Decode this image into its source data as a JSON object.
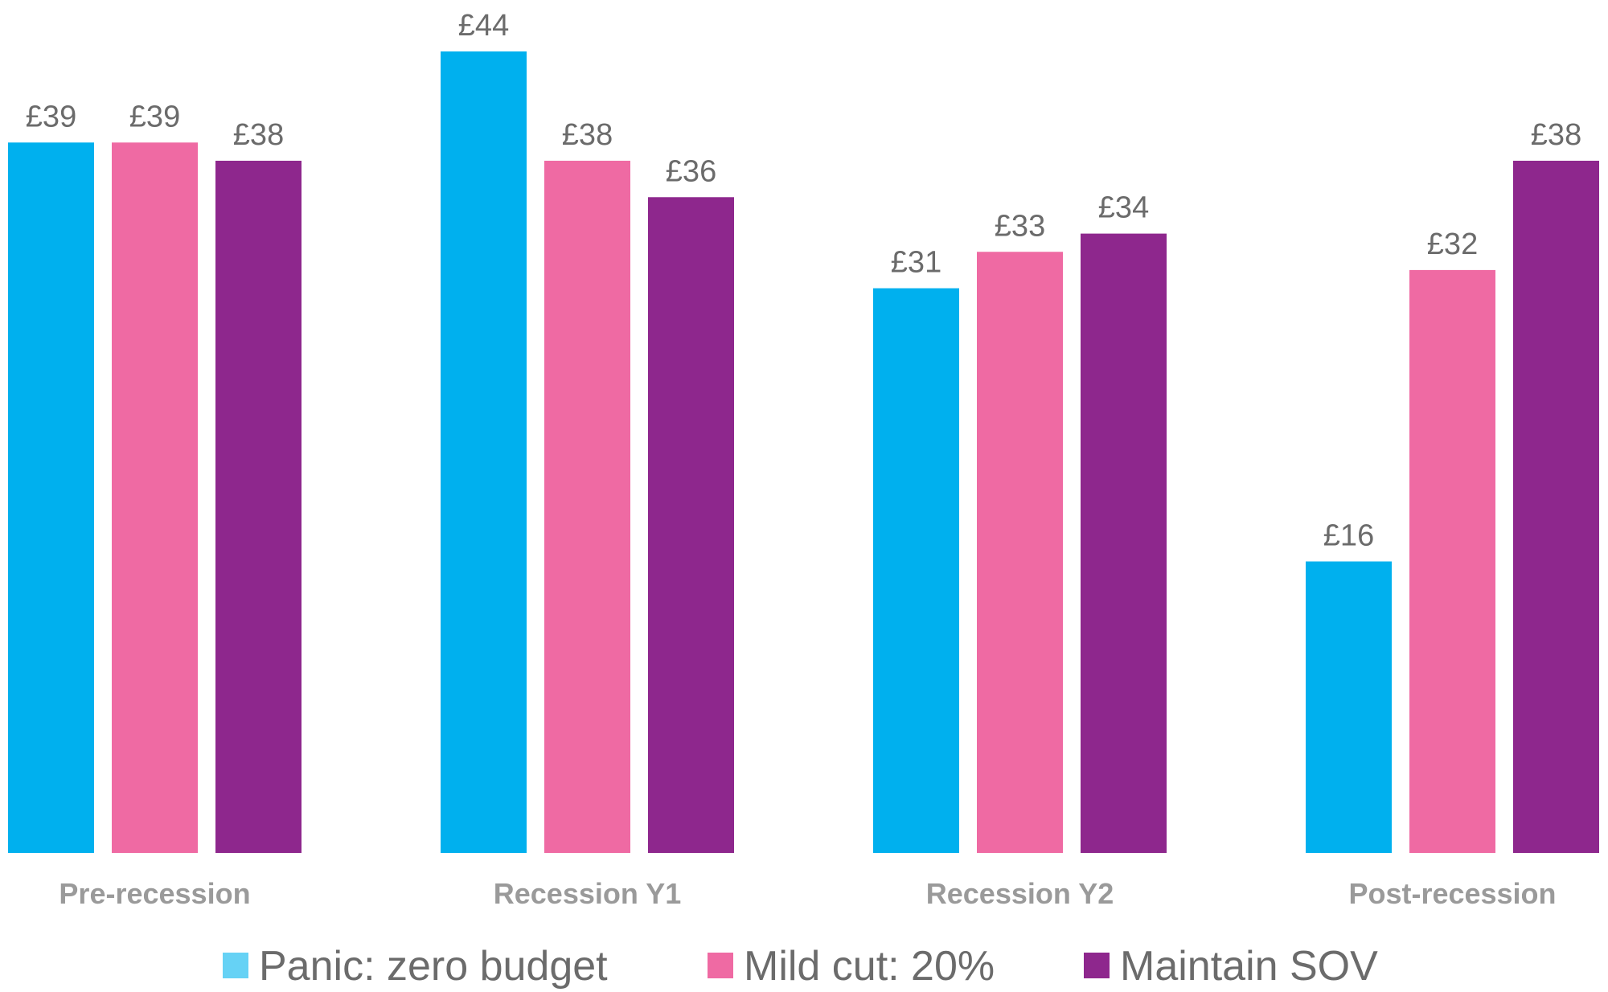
{
  "chart_data": {
    "type": "bar",
    "title": "",
    "xlabel": "",
    "ylabel": "",
    "categories": [
      "Pre-recession",
      "Recession Y1",
      "Recession Y2",
      "Post-recession"
    ],
    "series": [
      {
        "name": "Panic: zero budget",
        "color": "#00b0ee",
        "legend_color": "#66d2f5",
        "values": [
          39,
          44,
          31,
          16
        ]
      },
      {
        "name": "Mild cut: 20%",
        "color": "#ef6aa3",
        "legend_color": "#ef6aa3",
        "values": [
          39,
          38,
          33,
          32
        ]
      },
      {
        "name": "Maintain SOV",
        "color": "#8e278d",
        "legend_color": "#8e278d",
        "values": [
          38,
          36,
          34,
          38
        ]
      }
    ],
    "value_prefix": "£",
    "ylim": [
      0,
      44
    ],
    "grid": false,
    "legend_position": "bottom"
  }
}
